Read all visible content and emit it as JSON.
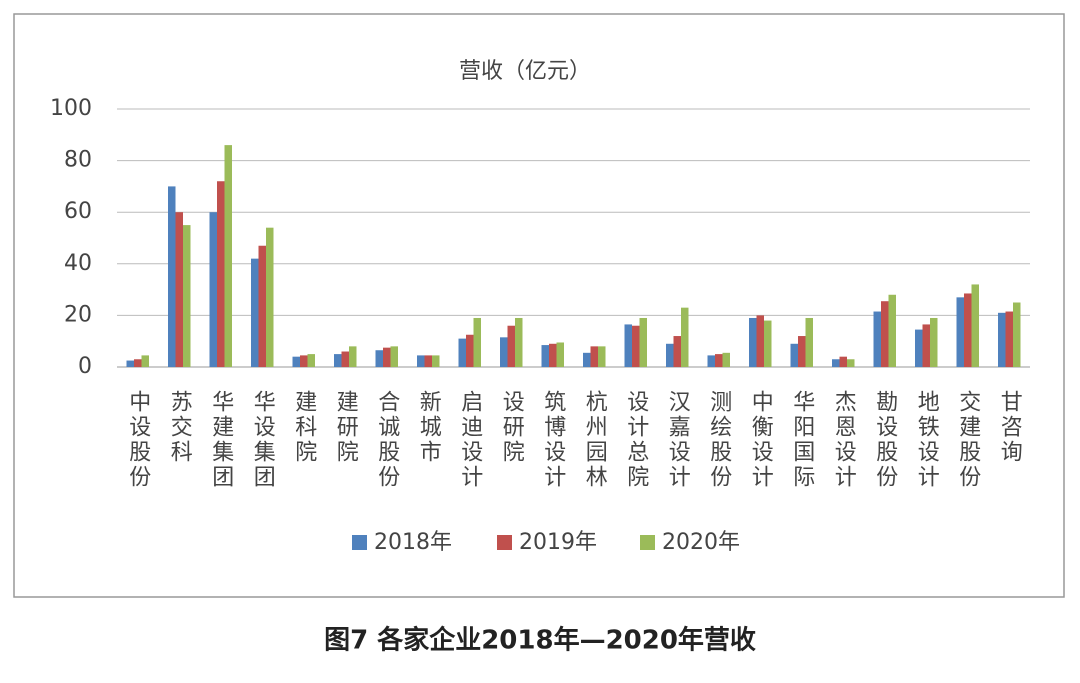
{
  "chart_data": {
    "type": "bar",
    "title": "营收（亿元）",
    "caption": "图7   各家企业2018年—2020年营收",
    "categories": [
      "中设股份",
      "苏交科",
      "华建集团",
      "华设集团",
      "建科院",
      "建研院",
      "合诚股份",
      "新城市",
      "启迪设计",
      "设研院",
      "筑博设计",
      "杭州园林",
      "设计总院",
      "汉嘉设计",
      "测绘股份",
      "中衡设计",
      "华阳国际",
      "杰恩设计",
      "勘设股份",
      "地铁设计",
      "交建股份",
      "甘咨询"
    ],
    "series": [
      {
        "name": "2018年",
        "color": "#4f81bd",
        "values": [
          2.5,
          70,
          60,
          42,
          4,
          5,
          6.5,
          4.5,
          11,
          11.5,
          8.5,
          5.5,
          16.5,
          9,
          4.5,
          19,
          9,
          3,
          21.5,
          14.5,
          27,
          21
        ]
      },
      {
        "name": "2019年",
        "color": "#c0504d",
        "values": [
          3,
          60,
          72,
          47,
          4.5,
          6,
          7.5,
          4.5,
          12.5,
          16,
          9,
          8,
          16,
          12,
          5,
          20,
          12,
          4,
          25.5,
          16.5,
          28.5,
          21.5
        ]
      },
      {
        "name": "2020年",
        "color": "#9bbb59",
        "values": [
          4.5,
          55,
          86,
          54,
          5,
          8,
          8,
          4.5,
          19,
          19,
          9.5,
          8,
          19,
          23,
          5.5,
          18,
          19,
          3,
          28,
          19,
          32,
          25
        ]
      }
    ],
    "ylim": [
      0,
      100
    ],
    "yticks": [
      0,
      20,
      40,
      60,
      80,
      100
    ],
    "grid": true,
    "legend": "bottom"
  }
}
